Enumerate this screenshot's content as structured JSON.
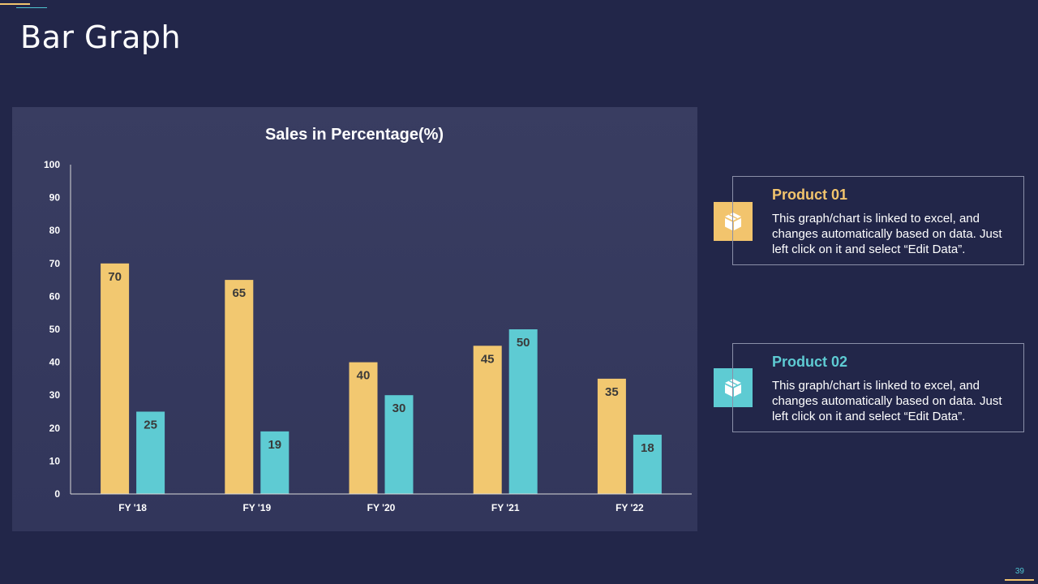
{
  "slide": {
    "title": "Bar Graph",
    "page_number": "39"
  },
  "legend": [
    {
      "heading": "Product 01",
      "text": "This graph/chart is linked to excel, and changes automatically based on data. Just left click on it and select “Edit Data”.",
      "icon": "box-icon",
      "color": "#f2c46d"
    },
    {
      "heading": "Product 02",
      "text": "This graph/chart is linked to excel, and changes automatically based on data. Just left click on it and select “Edit Data”.",
      "icon": "box-icon",
      "color": "#5ecbd3"
    }
  ],
  "chart_data": {
    "type": "bar",
    "title": "Sales in Percentage(%)",
    "categories": [
      "FY '18",
      "FY '19",
      "FY '20",
      "FY '21",
      "FY '22"
    ],
    "series": [
      {
        "name": "Product 01",
        "color": "#f2c870",
        "values": [
          70,
          65,
          40,
          45,
          35
        ]
      },
      {
        "name": "Product 02",
        "color": "#5ecbd3",
        "values": [
          25,
          19,
          30,
          50,
          18
        ]
      }
    ],
    "xlabel": "",
    "ylabel": "",
    "ylim": [
      0,
      100
    ],
    "yticks": [
      0,
      10,
      20,
      30,
      40,
      50,
      60,
      70,
      80,
      90,
      100
    ],
    "grid": false,
    "data_labels": true
  }
}
